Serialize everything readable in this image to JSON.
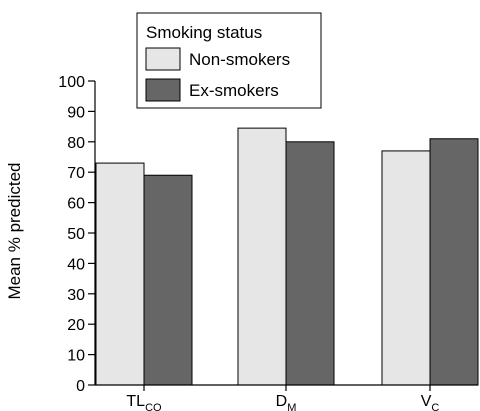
{
  "chart_data": {
    "type": "bar",
    "title": "",
    "xlabel": "",
    "ylabel": "Mean % predicted",
    "ylim": [
      0,
      100
    ],
    "yticks": [
      0,
      10,
      20,
      30,
      40,
      50,
      60,
      70,
      80,
      90,
      100
    ],
    "grid": false,
    "categories": [
      {
        "main": "TL",
        "sub": "CO"
      },
      {
        "main": "D",
        "sub": "M"
      },
      {
        "main": "V",
        "sub": "C"
      }
    ],
    "legend": {
      "title": "Smoking status",
      "placement": "top-center"
    },
    "series": [
      {
        "name": "Non-smokers",
        "color": "#e6e6e6",
        "values": [
          73,
          84.5,
          77
        ]
      },
      {
        "name": "Ex-smokers",
        "color": "#666666",
        "values": [
          69,
          80,
          81
        ]
      }
    ]
  }
}
